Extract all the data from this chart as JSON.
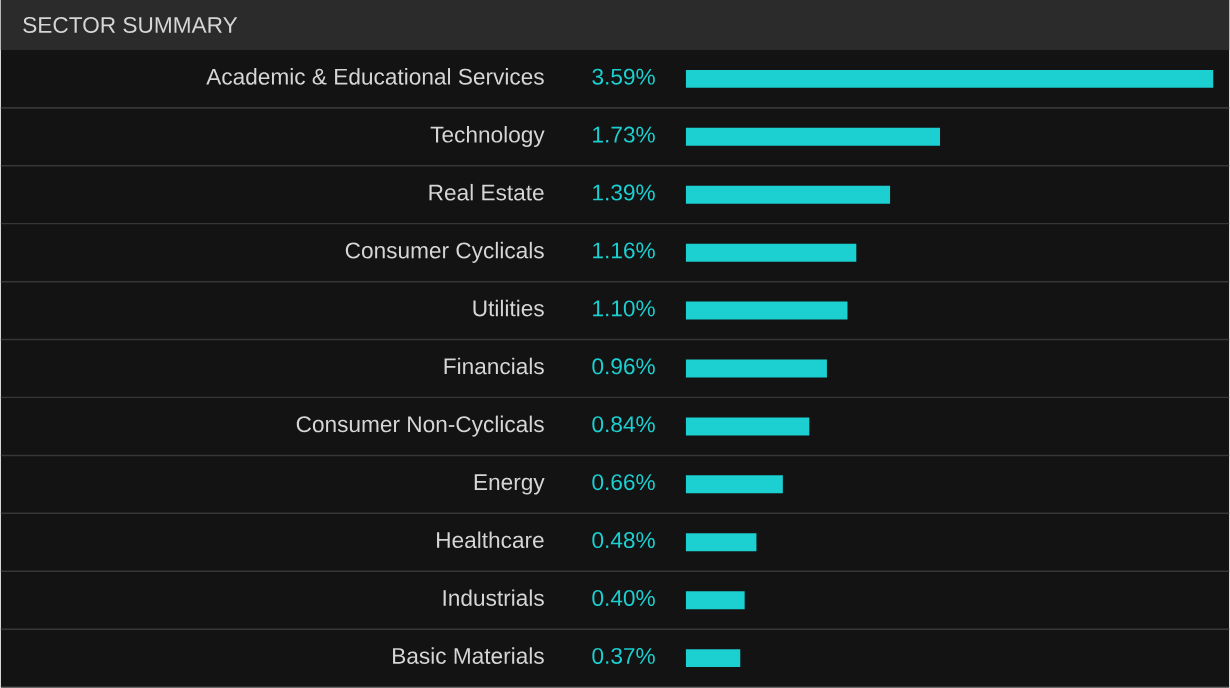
{
  "chart_data": {
    "type": "bar",
    "orientation": "horizontal",
    "title": "SECTOR SUMMARY",
    "categories": [
      "Academic & Educational Services",
      "Technology",
      "Real Estate",
      "Consumer Cyclicals",
      "Utilities",
      "Financials",
      "Consumer Non-Cyclicals",
      "Energy",
      "Healthcare",
      "Industrials",
      "Basic Materials"
    ],
    "values": [
      3.59,
      1.73,
      1.39,
      1.16,
      1.1,
      0.96,
      0.84,
      0.66,
      0.48,
      0.4,
      0.37
    ],
    "value_labels": [
      "3.59%",
      "1.73%",
      "1.39%",
      "1.16%",
      "1.10%",
      "0.96%",
      "0.84%",
      "0.66%",
      "0.48%",
      "0.40%",
      "0.37%"
    ],
    "color": "#1ccfd0",
    "grid": "y"
  }
}
